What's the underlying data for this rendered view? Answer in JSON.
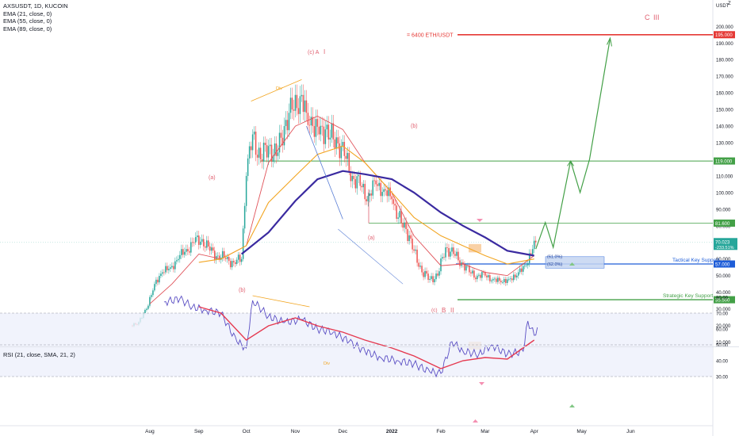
{
  "header": {
    "symbol_line": "AXSUSDT, 1D, KUCOIN",
    "indicators": [
      "EMA (21, close, 0)",
      "EMA (55, close, 0)",
      "EMA (89, close, 0)"
    ],
    "currency": "USDT",
    "corner_mark": "Z"
  },
  "rsi_panel": {
    "label": "RSI (21, close, SMA, 21, 2)",
    "y_ticks": [
      "80.00",
      "70.00",
      "60.00",
      "50.00",
      "40.00",
      "30.00"
    ],
    "div_label": "Div"
  },
  "colors": {
    "candle_up": "#26a69a",
    "candle_down": "#ef5350",
    "ema21": "#e0535a",
    "ema55": "#f2a521",
    "ema89": "#3a2aa0",
    "target_line": "#e53935",
    "level_line": "#43a047",
    "wave_label": "#e06070",
    "forecast": "#43a047",
    "support_line": "#1e5dd8",
    "rsi_line": "#5b4fc4",
    "rsi_sma": "#e53950",
    "div": "#f2a521"
  },
  "chart_data": [
    {
      "type": "line",
      "title": "AXSUSDT, 1D, KUCOIN",
      "x_ticks": [
        "Aug",
        "Sep",
        "Oct",
        "Nov",
        "Dec",
        "2022",
        "Feb",
        "Mar",
        "Apr",
        "May",
        "Jun"
      ],
      "y_ticks": [
        200,
        190,
        180,
        170,
        160,
        150,
        140,
        130,
        120,
        110,
        100,
        90,
        80,
        70,
        60,
        50,
        40,
        30,
        20,
        10
      ],
      "ylim": [
        5,
        205
      ],
      "series": [
        {
          "type": "candlestick_close",
          "x": [
            "2021-07-20",
            "2021-07-25",
            "2021-07-30",
            "2021-08-04",
            "2021-08-09",
            "2021-08-14",
            "2021-08-19",
            "2021-08-24",
            "2021-08-29",
            "2021-09-03",
            "2021-09-08",
            "2021-09-13",
            "2021-09-18",
            "2021-09-23",
            "2021-09-28",
            "2021-10-01",
            "2021-10-05",
            "2021-10-10",
            "2021-10-15",
            "2021-10-20",
            "2021-10-25",
            "2021-10-30",
            "2021-11-04",
            "2021-11-08",
            "2021-11-12",
            "2021-11-16",
            "2021-11-20",
            "2021-11-25",
            "2021-11-30",
            "2021-12-02",
            "2021-12-07",
            "2021-12-12",
            "2021-12-17",
            "2021-12-22",
            "2021-12-27",
            "2022-01-01",
            "2022-01-05",
            "2022-01-10",
            "2022-01-15",
            "2022-01-20",
            "2022-01-25",
            "2022-01-30",
            "2022-02-04",
            "2022-02-09",
            "2022-02-14",
            "2022-02-19",
            "2022-02-24",
            "2022-03-01",
            "2022-03-06",
            "2022-03-11",
            "2022-03-16",
            "2022-03-21",
            "2022-03-26",
            "2022-03-31",
            "2022-04-02"
          ],
          "y": [
            20,
            22,
            30,
            45,
            52,
            55,
            60,
            66,
            70,
            72,
            65,
            62,
            60,
            58,
            60,
            110,
            135,
            120,
            128,
            122,
            140,
            150,
            158,
            148,
            140,
            135,
            138,
            132,
            128,
            122,
            110,
            104,
            98,
            105,
            102,
            96,
            85,
            78,
            65,
            52,
            48,
            50,
            67,
            63,
            58,
            52,
            50,
            50,
            48,
            46,
            48,
            50,
            56,
            66,
            70
          ]
        },
        {
          "name": "EMA (89, close, 0)",
          "x": [
            "2021-09-28",
            "2021-10-15",
            "2021-11-01",
            "2021-11-15",
            "2021-12-01",
            "2021-12-15",
            "2022-01-01",
            "2022-01-15",
            "2022-02-01",
            "2022-02-15",
            "2022-03-01",
            "2022-03-15",
            "2022-04-01"
          ],
          "y": [
            63,
            76,
            95,
            108,
            113,
            111,
            108,
            100,
            88,
            80,
            73,
            65,
            62
          ]
        },
        {
          "name": "EMA (55, close, 0)",
          "x": [
            "2021-09-01",
            "2021-09-15",
            "2021-10-01",
            "2021-10-15",
            "2021-11-01",
            "2021-11-15",
            "2021-12-01",
            "2021-12-15",
            "2022-01-01",
            "2022-01-15",
            "2022-02-01",
            "2022-02-15",
            "2022-03-01",
            "2022-03-15",
            "2022-04-01"
          ],
          "y": [
            58,
            60,
            68,
            94,
            110,
            123,
            128,
            118,
            100,
            85,
            74,
            68,
            62,
            57,
            60
          ]
        },
        {
          "name": "EMA (21, close, 0)",
          "x": [
            "2021-08-01",
            "2021-08-15",
            "2021-09-01",
            "2021-09-15",
            "2021-10-01",
            "2021-10-15",
            "2021-11-01",
            "2021-11-15",
            "2021-12-01",
            "2021-12-15",
            "2022-01-01",
            "2022-01-15",
            "2022-02-01",
            "2022-02-15",
            "2022-03-01",
            "2022-03-15",
            "2022-04-01"
          ],
          "y": [
            33,
            45,
            63,
            60,
            68,
            118,
            140,
            146,
            138,
            118,
            100,
            74,
            56,
            57,
            52,
            50,
            62
          ]
        },
        {
          "name": "forecast",
          "x": [
            "2022-04-02",
            "2022-04-08",
            "2022-04-13",
            "2022-04-24",
            "2022-04-30",
            "2022-05-06",
            "2022-05-19"
          ],
          "y": [
            66,
            82,
            67,
            119,
            100,
            120,
            193
          ]
        }
      ],
      "price_labels": [
        "195.000",
        "119.000",
        "81.600",
        "70.023",
        "-233.51%",
        "57.000",
        "35.500"
      ],
      "levels": [
        {
          "label": "= 6400 ETH/USDT",
          "value": 195,
          "color": "#e53935"
        },
        {
          "label": "",
          "value": 119,
          "color": "#43a047"
        },
        {
          "label": "",
          "value": 81.6,
          "color": "#43a047"
        },
        {
          "label": "Tactical Key Support",
          "value": 57,
          "color": "#1e5dd8"
        },
        {
          "label": "Strategic Key Support",
          "value": 35.5,
          "color": "#43a047"
        }
      ],
      "annotations": [
        "(c) A",
        "I",
        "Div",
        "(a)",
        "(b)",
        "(b)",
        "(a)",
        "(c)",
        "B",
        "II",
        "C",
        "III",
        "(61.0%)",
        "(62.0%)"
      ]
    },
    {
      "type": "line",
      "title": "RSI (21, close, SMA, 21, 2)",
      "y_ticks": [
        80,
        70,
        60,
        50,
        40,
        30
      ],
      "ylim": [
        26,
        84
      ],
      "series": [
        {
          "name": "RSI",
          "x": [
            "2021-08-10",
            "2021-08-20",
            "2021-08-28",
            "2021-09-05",
            "2021-09-15",
            "2021-09-25",
            "2021-10-01",
            "2021-10-05",
            "2021-10-15",
            "2021-10-25",
            "2021-11-05",
            "2021-11-15",
            "2021-11-25",
            "2021-12-05",
            "2021-12-15",
            "2021-12-25",
            "2022-01-05",
            "2022-01-15",
            "2022-01-25",
            "2022-02-01",
            "2022-02-08",
            "2022-02-15",
            "2022-02-25",
            "2022-03-05",
            "2022-03-15",
            "2022-03-25",
            "2022-03-28",
            "2022-04-01",
            "2022-04-03"
          ],
          "y": [
            77,
            79,
            74,
            72,
            70,
            52,
            48,
            78,
            68,
            64,
            66,
            60,
            58,
            52,
            46,
            42,
            40,
            38,
            33,
            32,
            52,
            46,
            44,
            50,
            44,
            46,
            65,
            56,
            61
          ]
        },
        {
          "name": "RSI SMA",
          "x": [
            "2021-09-01",
            "2021-09-15",
            "2021-10-01",
            "2021-10-15",
            "2021-11-01",
            "2021-11-15",
            "2021-12-01",
            "2021-12-15",
            "2022-01-01",
            "2022-01-15",
            "2022-02-01",
            "2022-02-15",
            "2022-03-01",
            "2022-03-15",
            "2022-04-01"
          ],
          "y": [
            74,
            70,
            53,
            62,
            67,
            62,
            58,
            53,
            48,
            43,
            35,
            40,
            42,
            41,
            53
          ]
        }
      ]
    }
  ]
}
